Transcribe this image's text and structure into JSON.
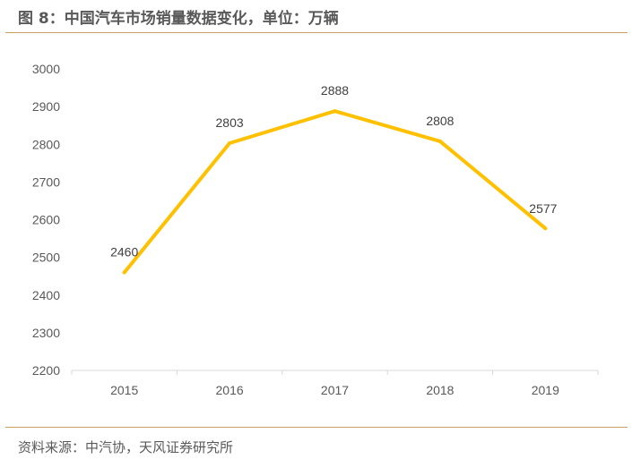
{
  "figure": {
    "title": "图 8：中国汽车市场销量数据变化，单位：万辆",
    "source": "资料来源：中汽协，天风证券研究所"
  },
  "chart_data": {
    "type": "line",
    "title": "",
    "xlabel": "",
    "ylabel": "",
    "x": [
      "2015",
      "2016",
      "2017",
      "2018",
      "2019"
    ],
    "series": [
      {
        "values": [
          2460,
          2803,
          2888,
          2808,
          2577
        ],
        "color": "#FFC000"
      }
    ],
    "data_labels": [
      "2460",
      "2803",
      "2888",
      "2808",
      "2577"
    ],
    "ylim": [
      2200,
      3000
    ],
    "yticks": [
      "2200",
      "2300",
      "2400",
      "2500",
      "2600",
      "2700",
      "2800",
      "2900",
      "3000"
    ],
    "grid": false,
    "legend": "none"
  }
}
